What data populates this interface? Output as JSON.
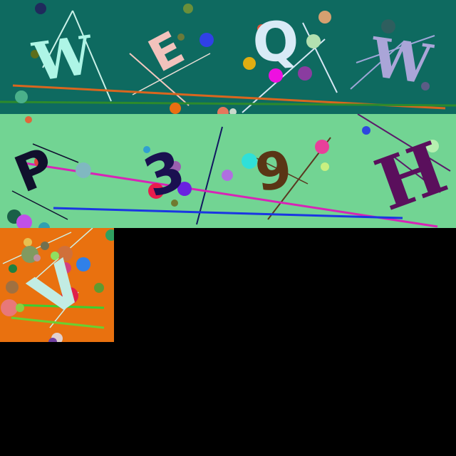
{
  "colors": {
    "page_background": "#000000",
    "strip_1_background": "#0e6a60",
    "strip_2_background": "#72d493",
    "strip_3_background": "#e9710f"
  },
  "strip_1": {
    "characters": [
      "W",
      "E",
      "Q",
      "W"
    ],
    "character_colors": [
      "#aef5e6",
      "#f2c2bc",
      "#d9eaf6",
      "#aaa5d8"
    ]
  },
  "strip_2": {
    "characters": [
      "P",
      "3",
      "9",
      "H"
    ],
    "character_colors": [
      "#10102c",
      "#1a1050",
      "#5a3515",
      "#5a0f5c"
    ]
  },
  "strip_3": {
    "characters": [
      "V"
    ],
    "character_colors": [
      "#c2ece3"
    ]
  }
}
